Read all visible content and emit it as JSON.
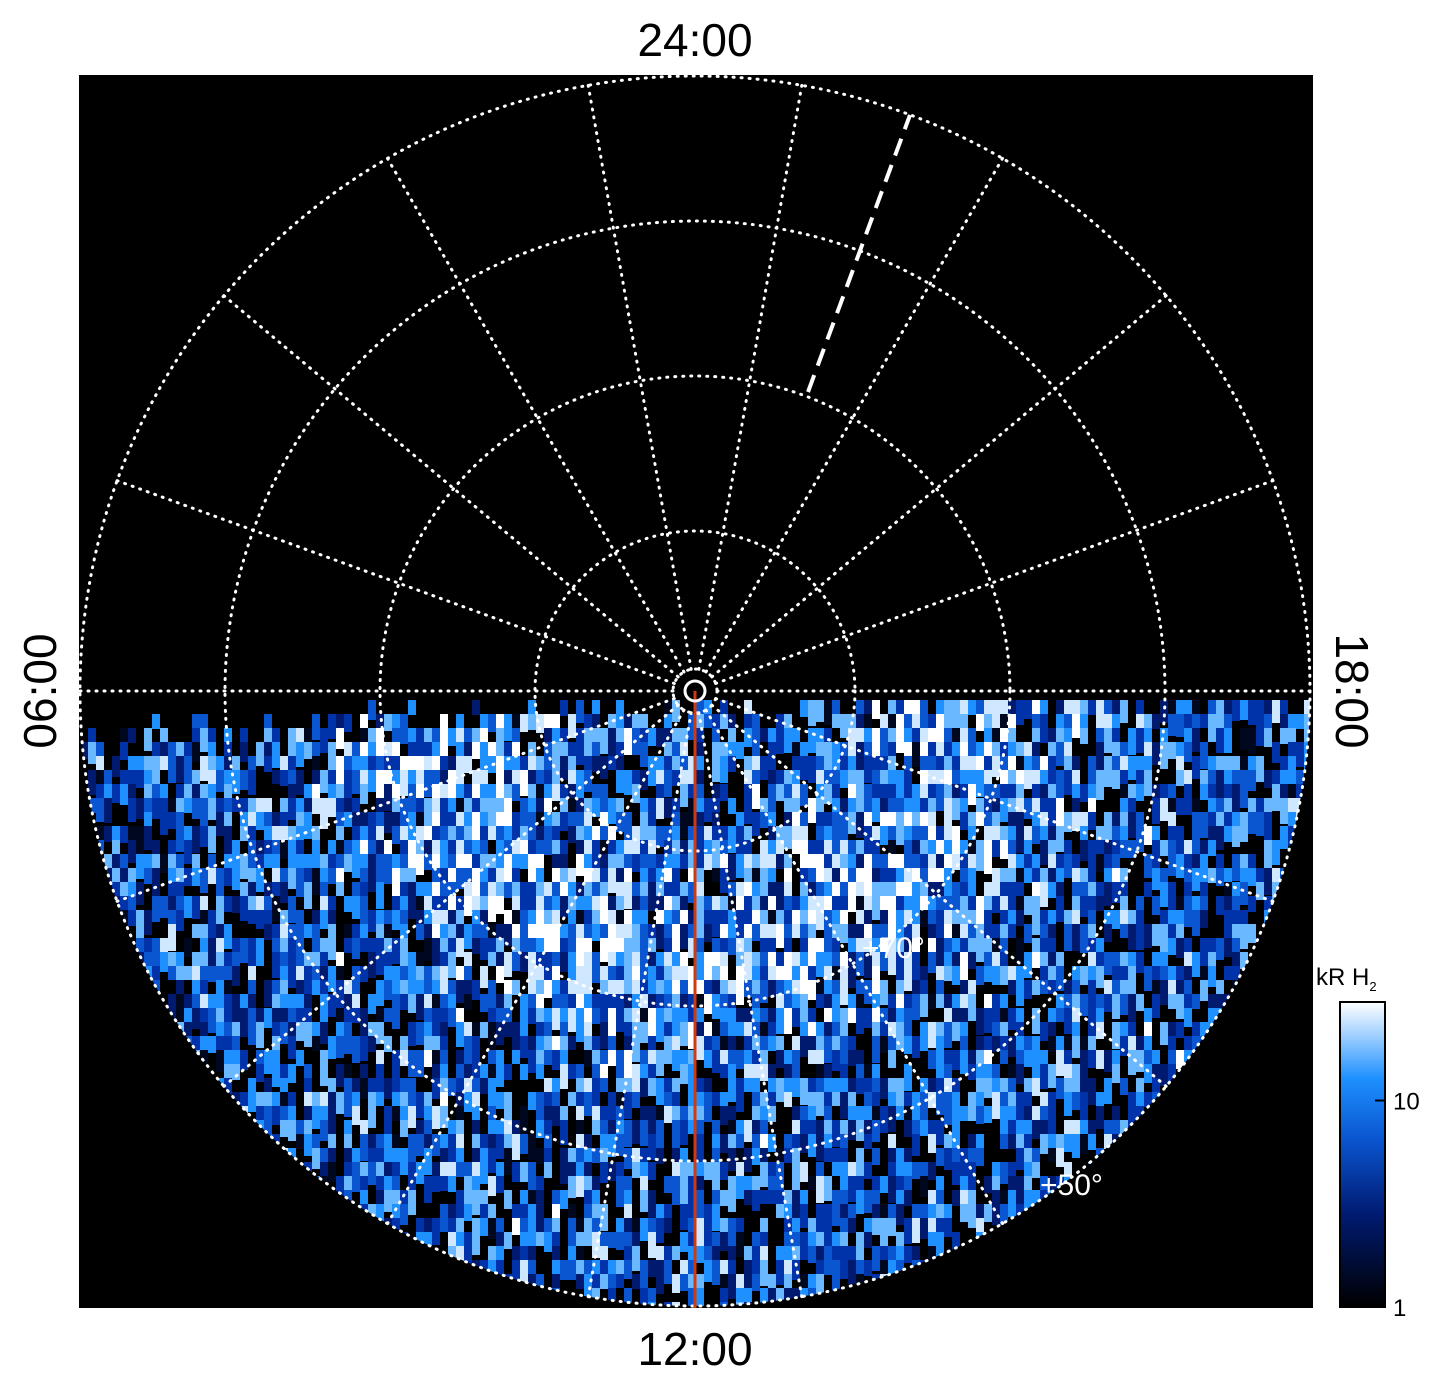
{
  "labels": {
    "top": "24:00",
    "bottom": "12:00",
    "left": "06:00",
    "right": "18:00"
  },
  "latitude_labels": [
    "+70°",
    "+50°"
  ],
  "colorbar": {
    "title": "kR H",
    "title_subscript": "2",
    "scale": "log",
    "range": [
      1,
      30
    ],
    "ticks": [
      1,
      10
    ]
  }
}
